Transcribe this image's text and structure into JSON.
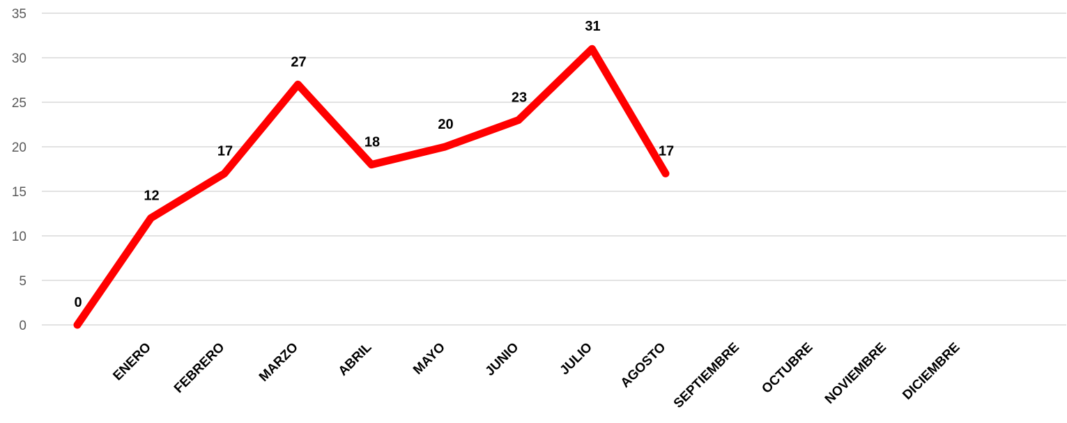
{
  "chart_data": {
    "type": "line",
    "title": "",
    "xlabel": "",
    "ylabel": "",
    "categories": [
      "",
      "ENERO",
      "FEBRERO",
      "MARZO",
      "ABRIL",
      "MAYO",
      "JUNIO",
      "JULIO",
      "AGOSTO",
      "SEPTIEMBRE",
      "OCTUBRE",
      "NOVIEMBRE",
      "DICIEMBRE"
    ],
    "series": [
      {
        "values": [
          0,
          12,
          17,
          27,
          18,
          20,
          23,
          31,
          17,
          null,
          null,
          null,
          null
        ],
        "color": "#ff0000"
      }
    ],
    "ylim": [
      0,
      35
    ],
    "yticks": [
      0,
      5,
      10,
      15,
      20,
      25,
      30,
      35
    ],
    "grid": true,
    "legend": "none",
    "data_labels": true
  }
}
